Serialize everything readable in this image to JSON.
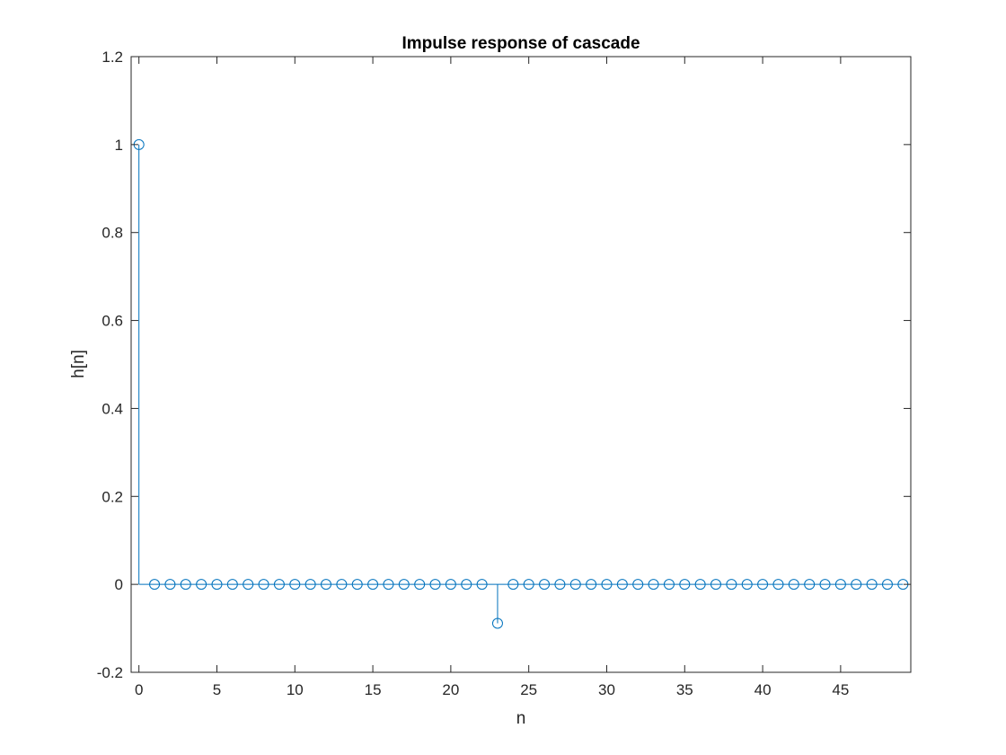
{
  "chart_data": {
    "type": "stem",
    "title": "Impulse response of cascade",
    "xlabel": "n",
    "ylabel": "h[n]",
    "xlim": [
      -0.5,
      49.5
    ],
    "ylim": [
      -0.2,
      1.2
    ],
    "xticks": [
      0,
      5,
      10,
      15,
      20,
      25,
      30,
      35,
      40,
      45
    ],
    "yticks": [
      -0.2,
      0,
      0.2,
      0.4,
      0.6,
      0.8,
      1,
      1.2
    ],
    "ytick_labels": [
      "-0.2",
      "0",
      "0.2",
      "0.4",
      "0.6",
      "0.8",
      "1",
      "1.2"
    ],
    "grid": false,
    "series": [
      {
        "color": "#0072BD",
        "marker": "circle",
        "x": [
          0,
          1,
          2,
          3,
          4,
          5,
          6,
          7,
          8,
          9,
          10,
          11,
          12,
          13,
          14,
          15,
          16,
          17,
          18,
          19,
          20,
          21,
          22,
          23,
          24,
          25,
          26,
          27,
          28,
          29,
          30,
          31,
          32,
          33,
          34,
          35,
          36,
          37,
          38,
          39,
          40,
          41,
          42,
          43,
          44,
          45,
          46,
          47,
          48,
          49
        ],
        "values": [
          1,
          0,
          0,
          0,
          0,
          0,
          0,
          0,
          0,
          0,
          0,
          0,
          0,
          0,
          0,
          0,
          0,
          0,
          0,
          0,
          0,
          0,
          0,
          -0.0886,
          0,
          0,
          0,
          0,
          0,
          0,
          0,
          0,
          0,
          0,
          0,
          0,
          0,
          0,
          0,
          0,
          0,
          0,
          0,
          0,
          0,
          0,
          0,
          0,
          0,
          0
        ]
      }
    ]
  }
}
